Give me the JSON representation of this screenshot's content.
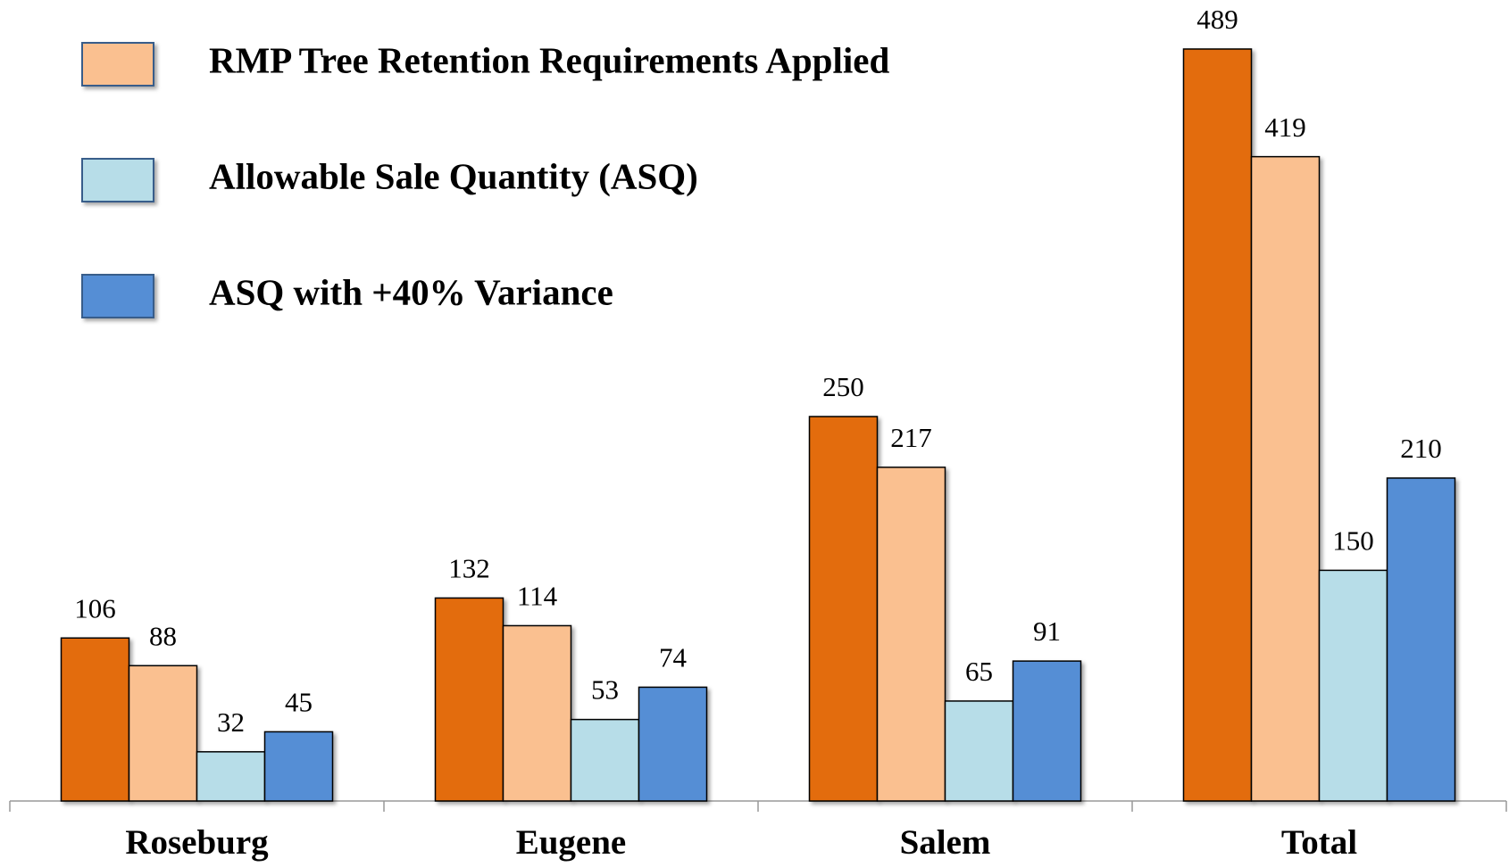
{
  "chart_data": {
    "type": "bar",
    "categories": [
      "Roseburg",
      "Eugene",
      "Salem",
      "Total"
    ],
    "series": [
      {
        "color": "#e36c0a",
        "values": [
          106,
          132,
          250,
          489
        ]
      },
      {
        "name": "RMP Tree Retention Requirements Applied",
        "color": "#fac090",
        "values": [
          88,
          114,
          217,
          419
        ]
      },
      {
        "name": "Allowable Sale Quantity (ASQ)",
        "color": "#b7dde8",
        "values": [
          32,
          53,
          65,
          150
        ]
      },
      {
        "name": "ASQ with +40% Variance",
        "color": "#558ed5",
        "values": [
          45,
          74,
          91,
          210
        ]
      }
    ],
    "ylim": [
      0,
      500
    ],
    "legend": "top-left"
  }
}
